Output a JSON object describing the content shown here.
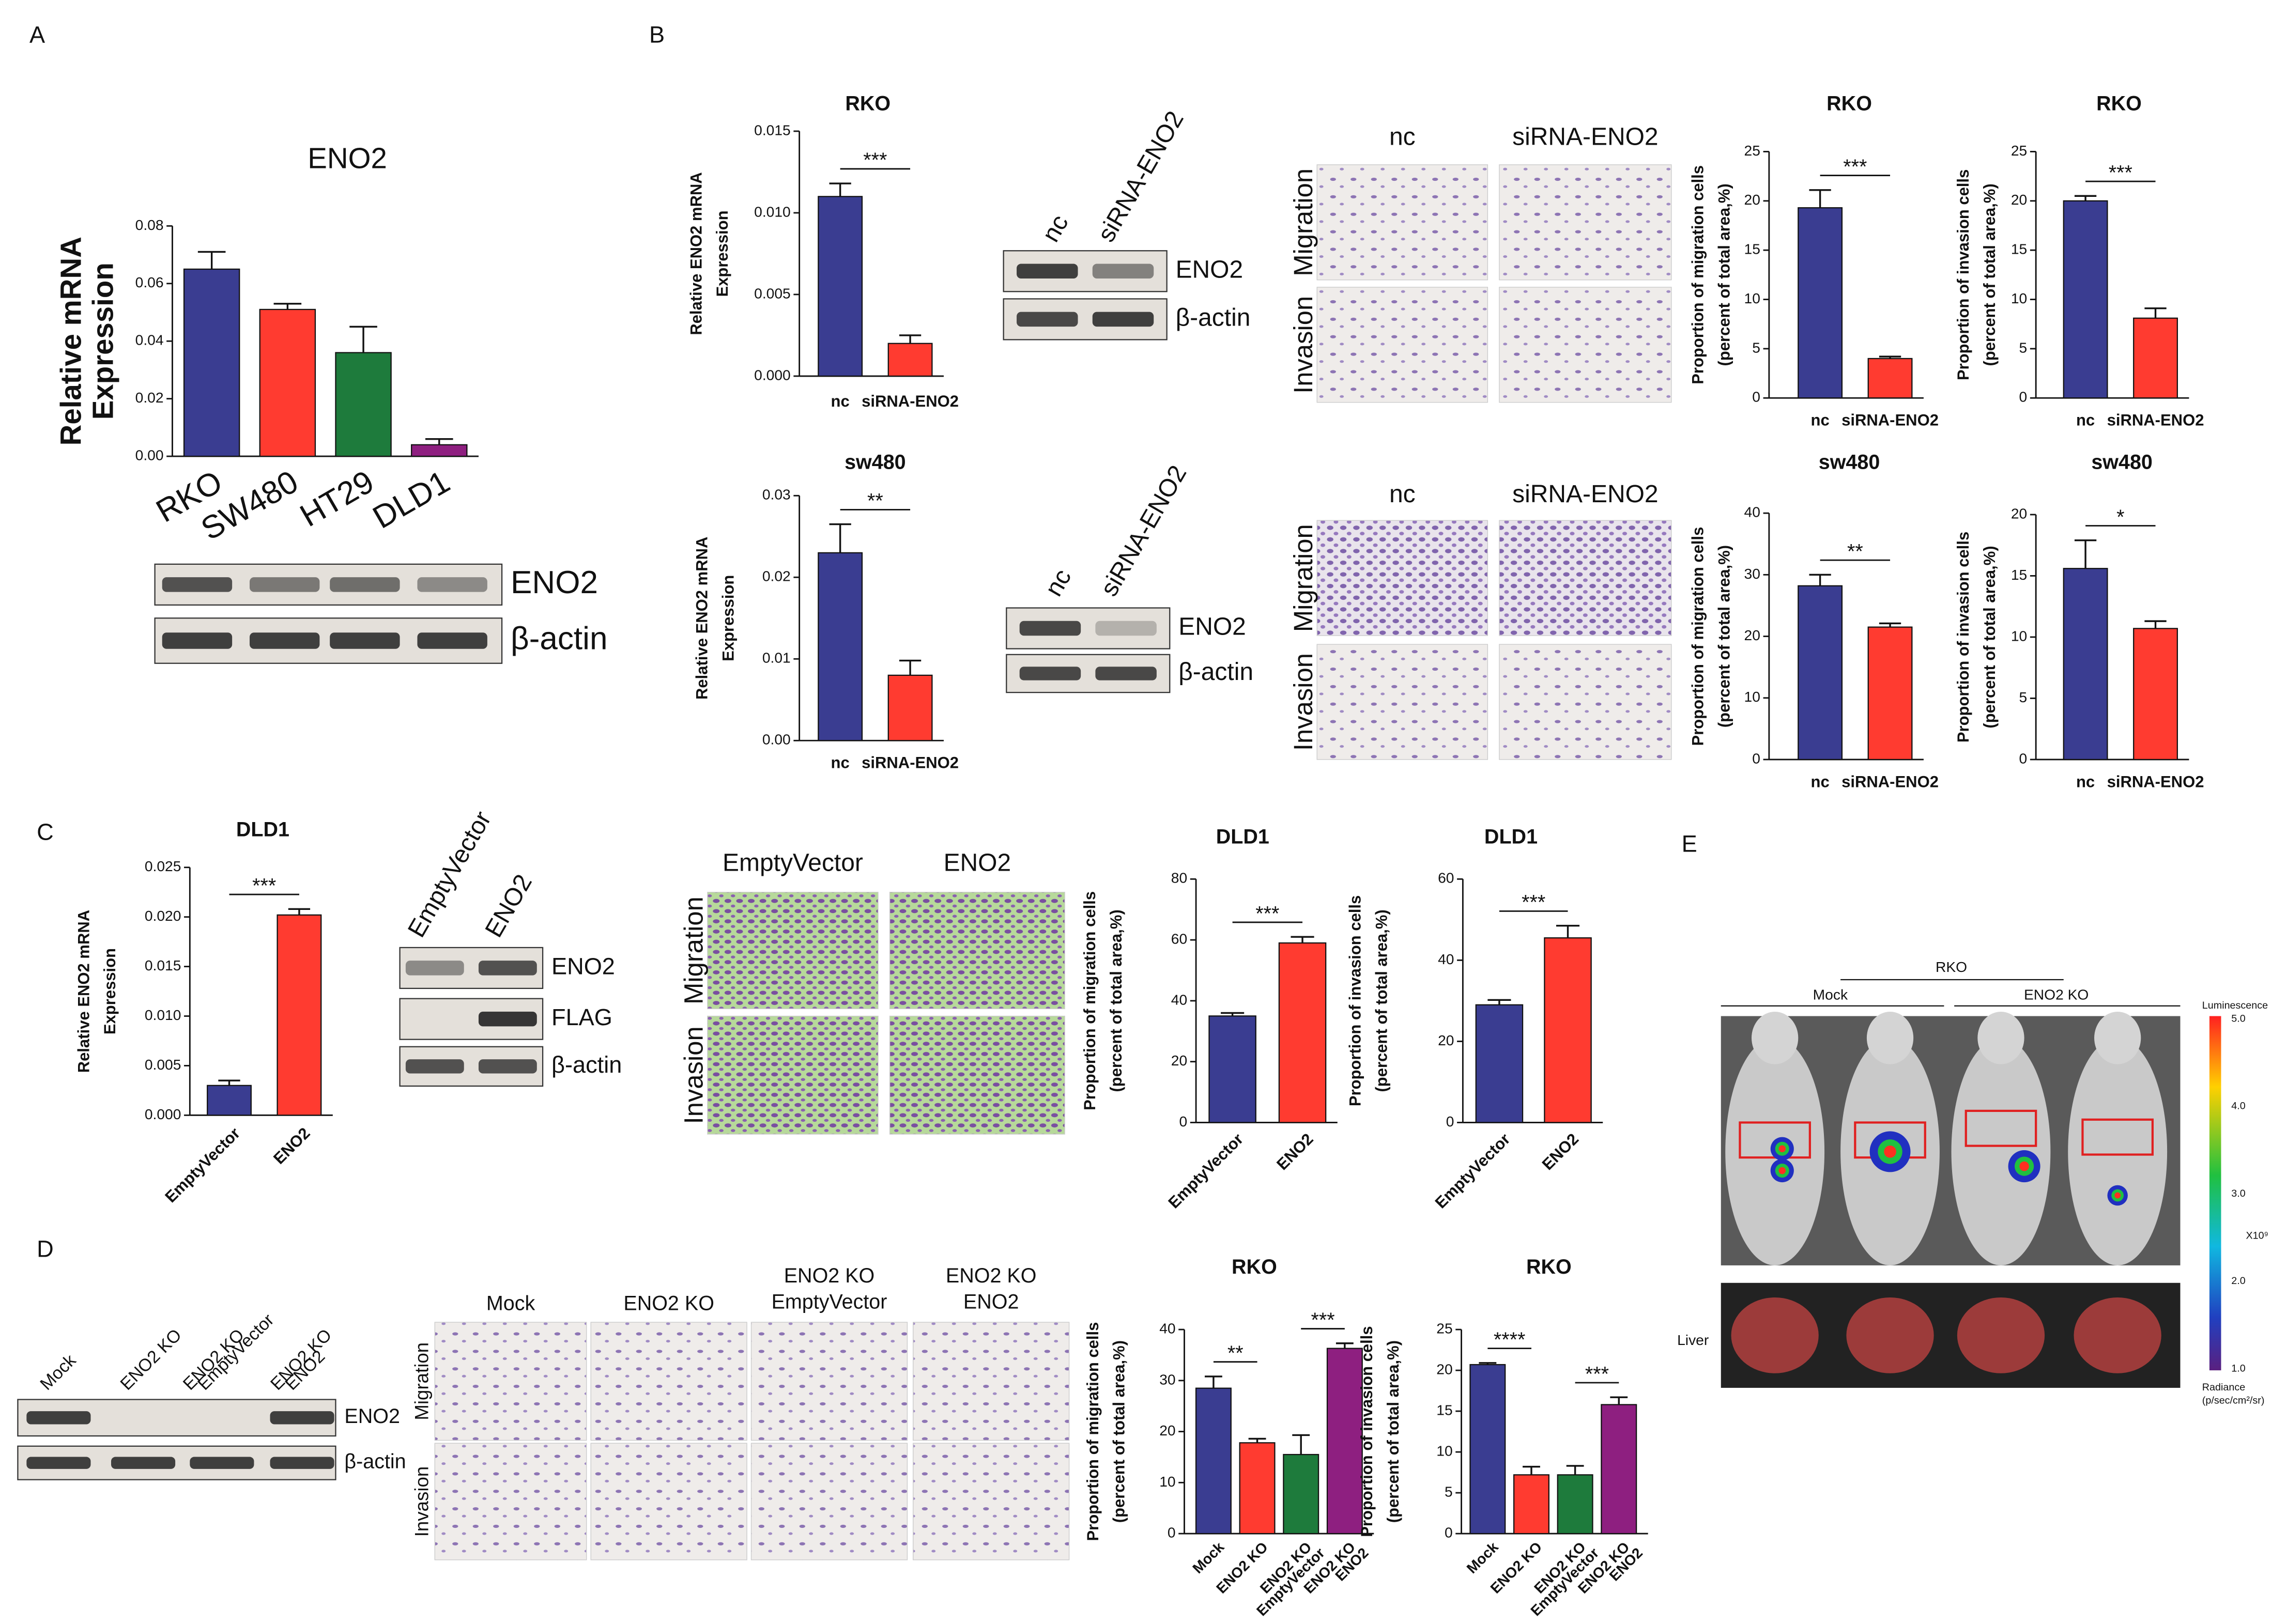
{
  "chart_data": [
    {
      "type": "bar",
      "title": "ENO2",
      "y_label": [
        "Relative mRNA",
        "Expression"
      ],
      "categories": [
        "RKO",
        "SW480",
        "HT29",
        "DLD1"
      ],
      "values": [
        0.065,
        0.051,
        0.036,
        0.004
      ],
      "errors": [
        0.006,
        0.002,
        0.009,
        0.002
      ],
      "colors": [
        "#3a3d91",
        "#ff3b30",
        "#1e7b3c",
        "#8e1f80"
      ],
      "ylim": [
        0,
        0.08
      ],
      "yticks": [
        {
          "value": 0,
          "label": "0.00"
        },
        {
          "value": 0.02,
          "label": "0.02"
        },
        {
          "value": 0.04,
          "label": "0.04"
        },
        {
          "value": 0.06,
          "label": "0.06"
        },
        {
          "value": 0.08,
          "label": "0.08"
        }
      ]
    },
    {
      "type": "bar",
      "title": "RKO",
      "y_label": [
        "Relative ENO2 mRNA",
        "Expression"
      ],
      "categories": [
        "nc",
        "siRNA-ENO2"
      ],
      "values": [
        0.011,
        0.002
      ],
      "errors": [
        0.0008,
        0.0005
      ],
      "colors": [
        "#3a3d91",
        "#ff3b30"
      ],
      "ylim": [
        0,
        0.015
      ],
      "yticks": [
        {
          "value": 0,
          "label": "0.000"
        },
        {
          "value": 0.005,
          "label": "0.005"
        },
        {
          "value": 0.01,
          "label": "0.010"
        },
        {
          "value": 0.015,
          "label": "0.015"
        }
      ],
      "annotations": [
        {
          "text": "***",
          "between": [
            0,
            1
          ]
        }
      ]
    },
    {
      "type": "bar",
      "title": "sw480",
      "y_label": [
        "Relative ENO2 mRNA",
        "Expression"
      ],
      "categories": [
        "nc",
        "siRNA-ENO2"
      ],
      "values": [
        0.023,
        0.008
      ],
      "errors": [
        0.0035,
        0.0018
      ],
      "colors": [
        "#3a3d91",
        "#ff3b30"
      ],
      "ylim": [
        0,
        0.03
      ],
      "yticks": [
        {
          "value": 0,
          "label": "0.00"
        },
        {
          "value": 0.01,
          "label": "0.01"
        },
        {
          "value": 0.02,
          "label": "0.02"
        },
        {
          "value": 0.03,
          "label": "0.03"
        }
      ],
      "annotations": [
        {
          "text": "**",
          "between": [
            0,
            1
          ]
        }
      ]
    },
    {
      "type": "bar",
      "title": "RKO",
      "y_label": [
        "Proportion of migration cells",
        "(percent of total area,%)"
      ],
      "categories": [
        "nc",
        "siRNA-ENO2"
      ],
      "values": [
        19.3,
        4.0
      ],
      "errors": [
        1.8,
        0.2
      ],
      "colors": [
        "#3a3d91",
        "#ff3b30"
      ],
      "ylim": [
        0,
        25
      ],
      "yticks": [
        0,
        5,
        10,
        15,
        20,
        25
      ],
      "annotations": [
        {
          "text": "***",
          "between": [
            0,
            1
          ]
        }
      ]
    },
    {
      "type": "bar",
      "title": "RKO",
      "y_label": [
        "Proportion of invasion cells",
        "(percent of total area,%)"
      ],
      "categories": [
        "nc",
        "siRNA-ENO2"
      ],
      "values": [
        20.0,
        8.1
      ],
      "errors": [
        0.5,
        1.0
      ],
      "colors": [
        "#3a3d91",
        "#ff3b30"
      ],
      "ylim": [
        0,
        25
      ],
      "yticks": [
        0,
        5,
        10,
        15,
        20,
        25
      ],
      "annotations": [
        {
          "text": "***",
          "between": [
            0,
            1
          ]
        }
      ]
    },
    {
      "type": "bar",
      "title": "sw480",
      "y_label": [
        "Proportion of migration cells",
        "(percent of total area,%)"
      ],
      "categories": [
        "nc",
        "siRNA-ENO2"
      ],
      "values": [
        28.2,
        21.5
      ],
      "errors": [
        1.8,
        0.6
      ],
      "colors": [
        "#3a3d91",
        "#ff3b30"
      ],
      "ylim": [
        0,
        40
      ],
      "yticks": [
        0,
        10,
        20,
        30,
        40
      ],
      "annotations": [
        {
          "text": "**",
          "between": [
            0,
            1
          ]
        }
      ]
    },
    {
      "type": "bar",
      "title": "sw480",
      "y_label": [
        "Proportion of invasion cells",
        "(percent of total area,%)"
      ],
      "categories": [
        "nc",
        "siRNA-ENO2"
      ],
      "values": [
        15.6,
        10.7
      ],
      "errors": [
        2.3,
        0.6
      ],
      "colors": [
        "#3a3d91",
        "#ff3b30"
      ],
      "ylim": [
        0,
        20
      ],
      "yticks": [
        0,
        5,
        10,
        15,
        20
      ],
      "annotations": [
        {
          "text": "*",
          "between": [
            0,
            1
          ]
        }
      ]
    },
    {
      "type": "bar",
      "title": "DLD1",
      "y_label": [
        "Relative ENO2 mRNA",
        "Expression"
      ],
      "categories": [
        "EmptyVector",
        "ENO2"
      ],
      "values": [
        0.003,
        0.0202
      ],
      "errors": [
        0.0005,
        0.0006
      ],
      "colors": [
        "#3a3d91",
        "#ff3b30"
      ],
      "ylim": [
        0,
        0.025
      ],
      "yticks": [
        {
          "value": 0,
          "label": "0.000"
        },
        {
          "value": 0.005,
          "label": "0.005"
        },
        {
          "value": 0.01,
          "label": "0.010"
        },
        {
          "value": 0.015,
          "label": "0.015"
        },
        {
          "value": 0.02,
          "label": "0.020"
        },
        {
          "value": 0.025,
          "label": "0.025"
        }
      ],
      "annotations": [
        {
          "text": "***",
          "between": [
            0,
            1
          ]
        }
      ]
    },
    {
      "type": "bar",
      "title": "DLD1",
      "y_label": [
        "Proportion of migration cells",
        "(percent of total area,%)"
      ],
      "categories": [
        "EmptyVector",
        "ENO2"
      ],
      "values": [
        35,
        59
      ],
      "errors": [
        1,
        2
      ],
      "colors": [
        "#3a3d91",
        "#ff3b30"
      ],
      "ylim": [
        0,
        80
      ],
      "yticks": [
        0,
        20,
        40,
        60,
        80
      ],
      "annotations": [
        {
          "text": "***",
          "between": [
            0,
            1
          ]
        }
      ]
    },
    {
      "type": "bar",
      "title": "DLD1",
      "y_label": [
        "Proportion of invasion cells",
        "(percent of total area,%)"
      ],
      "categories": [
        "EmptyVector",
        "ENO2"
      ],
      "values": [
        29,
        45.5
      ],
      "errors": [
        1.2,
        3
      ],
      "colors": [
        "#3a3d91",
        "#ff3b30"
      ],
      "ylim": [
        0,
        60
      ],
      "yticks": [
        0,
        20,
        40,
        60
      ],
      "annotations": [
        {
          "text": "***",
          "between": [
            0,
            1
          ]
        }
      ]
    },
    {
      "type": "bar",
      "title": "RKO",
      "y_label": [
        "Proportion of migration cells",
        "(percent of total area,%)"
      ],
      "categories": [
        [
          "Mock"
        ],
        [
          "ENO2 KO"
        ],
        [
          "ENO2 KO",
          "EmptyVector"
        ],
        [
          "ENO2 KO",
          "ENO2"
        ]
      ],
      "values": [
        28.5,
        17.8,
        15.5,
        36.3
      ],
      "errors": [
        2.3,
        0.8,
        3.8,
        1.0
      ],
      "colors": [
        "#3a3d91",
        "#ff3b30",
        "#1e7b3c",
        "#8e1f80"
      ],
      "ylim": [
        0,
        40
      ],
      "yticks": [
        0,
        10,
        20,
        30,
        40
      ],
      "annotations": [
        {
          "text": "**",
          "between": [
            0,
            1
          ]
        },
        {
          "text": "***",
          "between": [
            2,
            3
          ]
        }
      ]
    },
    {
      "type": "bar",
      "title": "RKO",
      "y_label": [
        "Proportion of invasion cells",
        "(percent of total area,%)"
      ],
      "categories": [
        [
          "Mock"
        ],
        [
          "ENO2 KO"
        ],
        [
          "ENO2 KO",
          "EmptyVector"
        ],
        [
          "ENO2 KO",
          "ENO2"
        ]
      ],
      "values": [
        20.7,
        7.2,
        7.2,
        15.8
      ],
      "errors": [
        0.2,
        1.0,
        1.1,
        0.9
      ],
      "colors": [
        "#3a3d91",
        "#ff3b30",
        "#1e7b3c",
        "#8e1f80"
      ],
      "ylim": [
        0,
        25
      ],
      "yticks": [
        0,
        5,
        10,
        15,
        20,
        25
      ],
      "annotations": [
        {
          "text": "****",
          "between": [
            0,
            1
          ]
        },
        {
          "text": "***",
          "between": [
            2,
            3
          ]
        }
      ]
    }
  ],
  "panels": {
    "letters": [
      "A",
      "B",
      "C",
      "D",
      "E"
    ],
    "a_blot": {
      "rows": [
        "ENO2",
        "β-actin"
      ]
    },
    "b_rko_blot": {
      "columns": [
        "nc",
        "siRNA-ENO2"
      ],
      "rows": [
        "ENO2",
        "β-actin"
      ]
    },
    "b_sw480_blot": {
      "columns": [
        "nc",
        "siRNA-ENO2"
      ],
      "rows": [
        "ENO2",
        "β-actin"
      ]
    },
    "b_rko_images": {
      "columns": [
        "nc",
        "siRNA-ENO2"
      ],
      "rows": [
        "Migration",
        "Invasion"
      ]
    },
    "b_sw480_images": {
      "columns": [
        "nc",
        "siRNA-ENO2"
      ],
      "rows": [
        "Migration",
        "Invasion"
      ]
    },
    "c_blot": {
      "columns": [
        "EmptyVector",
        "ENO2"
      ],
      "rows": [
        "ENO2",
        "FLAG",
        "β-actin"
      ]
    },
    "c_images": {
      "columns": [
        "EmptyVector",
        "ENO2"
      ],
      "rows": [
        "Migration",
        "Invasion"
      ]
    },
    "d_blot": {
      "columns": [
        [
          "Mock"
        ],
        [
          "ENO2 KO"
        ],
        [
          "ENO2 KO",
          "EmptyVector"
        ],
        [
          "ENO2 KO",
          "ENO2"
        ]
      ],
      "rows": [
        "ENO2",
        "β-actin"
      ]
    },
    "d_images": {
      "columns": [
        [
          "Mock"
        ],
        [
          "ENO2 KO"
        ],
        [
          "ENO2 KO",
          "EmptyVector"
        ],
        [
          "ENO2 KO",
          "ENO2"
        ]
      ],
      "rows": [
        "Migration",
        "Invasion"
      ]
    },
    "e_imaging": {
      "cell_line": "RKO",
      "groups": [
        "Mock",
        "ENO2 KO"
      ],
      "organ": "Liver",
      "colorbar": {
        "title": "Luminescence",
        "ticks": [
          "5.0",
          "4.0",
          "3.0",
          "2.0",
          "1.0"
        ],
        "multiplier": "X10⁹",
        "unit": [
          "Radiance",
          "(p/sec/cm²/sr)"
        ]
      }
    }
  }
}
